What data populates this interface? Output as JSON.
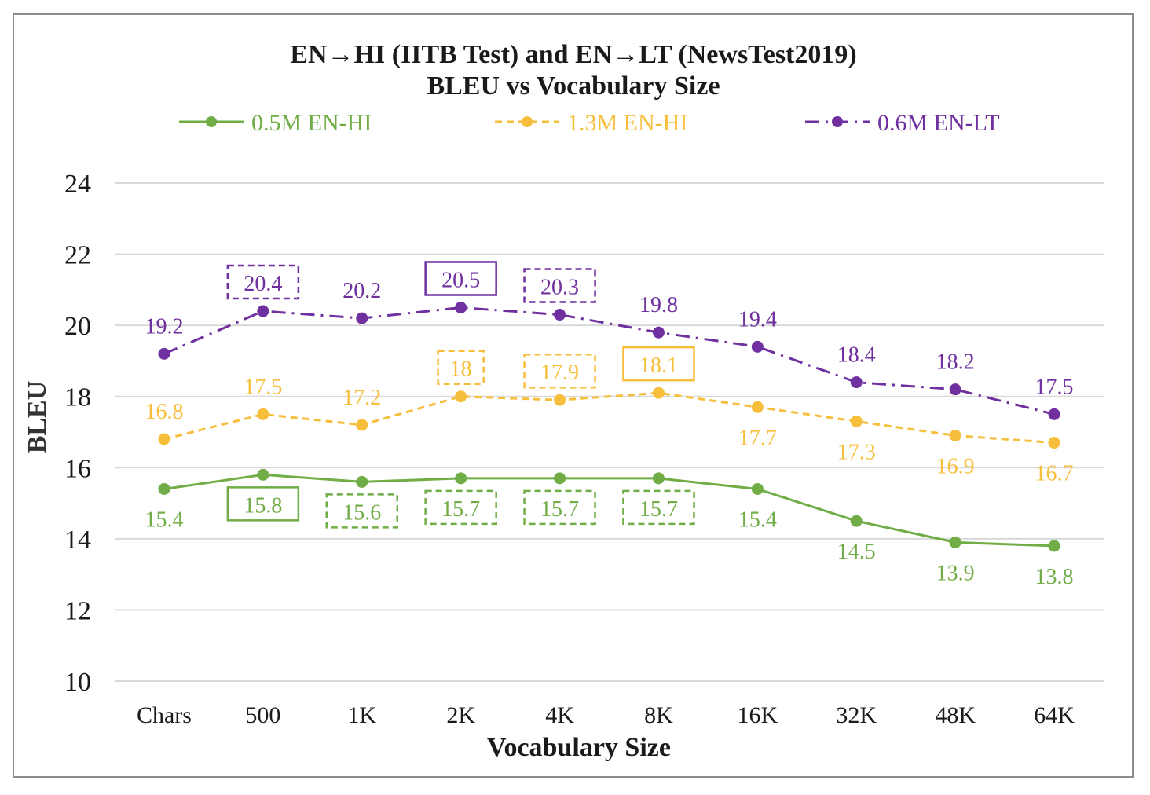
{
  "chart_data": {
    "type": "line",
    "title_line1": "EN→HI (IITB Test) and EN→LT (NewsTest2019)",
    "title_line2": "BLEU vs Vocabulary Size",
    "xlabel": "Vocabulary Size",
    "ylabel": "BLEU",
    "categories": [
      "Chars",
      "500",
      "1K",
      "2K",
      "4K",
      "8K",
      "16K",
      "32K",
      "48K",
      "64K"
    ],
    "ylim": [
      10,
      24
    ],
    "yticks": [
      10,
      12,
      14,
      16,
      18,
      20,
      22,
      24
    ],
    "grid": true,
    "legend_position": "top",
    "series": [
      {
        "name": "0.5M EN-HI",
        "color": "#70ad47",
        "dash": "solid",
        "values": [
          15.4,
          15.8,
          15.6,
          15.7,
          15.7,
          15.7,
          15.4,
          14.5,
          13.9,
          13.8
        ],
        "labels": [
          "15.4",
          "15.8",
          "15.6",
          "15.7",
          "15.7",
          "15.7",
          "15.4",
          "14.5",
          "13.9",
          "13.8"
        ],
        "label_side": [
          "below",
          "below",
          "below",
          "below",
          "below",
          "below",
          "below",
          "below",
          "below",
          "below"
        ],
        "label_box": [
          "none",
          "solid",
          "dashed",
          "dashed",
          "dashed",
          "dashed",
          "none",
          "none",
          "none",
          "none"
        ]
      },
      {
        "name": "1.3M EN-HI",
        "color": "#f7be3c",
        "dash": "dashed",
        "values": [
          16.8,
          17.5,
          17.2,
          18.0,
          17.9,
          18.1,
          17.7,
          17.3,
          16.9,
          16.7
        ],
        "labels": [
          "16.8",
          "17.5",
          "17.2",
          "18",
          "17.9",
          "18.1",
          "17.7",
          "17.3",
          "16.9",
          "16.7"
        ],
        "label_side": [
          "above",
          "above",
          "above",
          "above",
          "above",
          "above",
          "below",
          "below",
          "below",
          "below"
        ],
        "label_box": [
          "none",
          "none",
          "none",
          "dashed",
          "dashed",
          "solid",
          "none",
          "none",
          "none",
          "none"
        ]
      },
      {
        "name": "0.6M EN-LT",
        "color": "#7030a0",
        "dash": "dashdot",
        "values": [
          19.2,
          20.4,
          20.2,
          20.5,
          20.3,
          19.8,
          19.4,
          18.4,
          18.2,
          17.5
        ],
        "labels": [
          "19.2",
          "20.4",
          "20.2",
          "20.5",
          "20.3",
          "19.8",
          "19.4",
          "18.4",
          "18.2",
          "17.5"
        ],
        "label_side": [
          "above",
          "above",
          "above",
          "above",
          "above",
          "above",
          "above",
          "above",
          "above",
          "above"
        ],
        "label_box": [
          "none",
          "dashed",
          "none",
          "solid",
          "dashed",
          "none",
          "none",
          "none",
          "none",
          "none"
        ]
      }
    ]
  }
}
